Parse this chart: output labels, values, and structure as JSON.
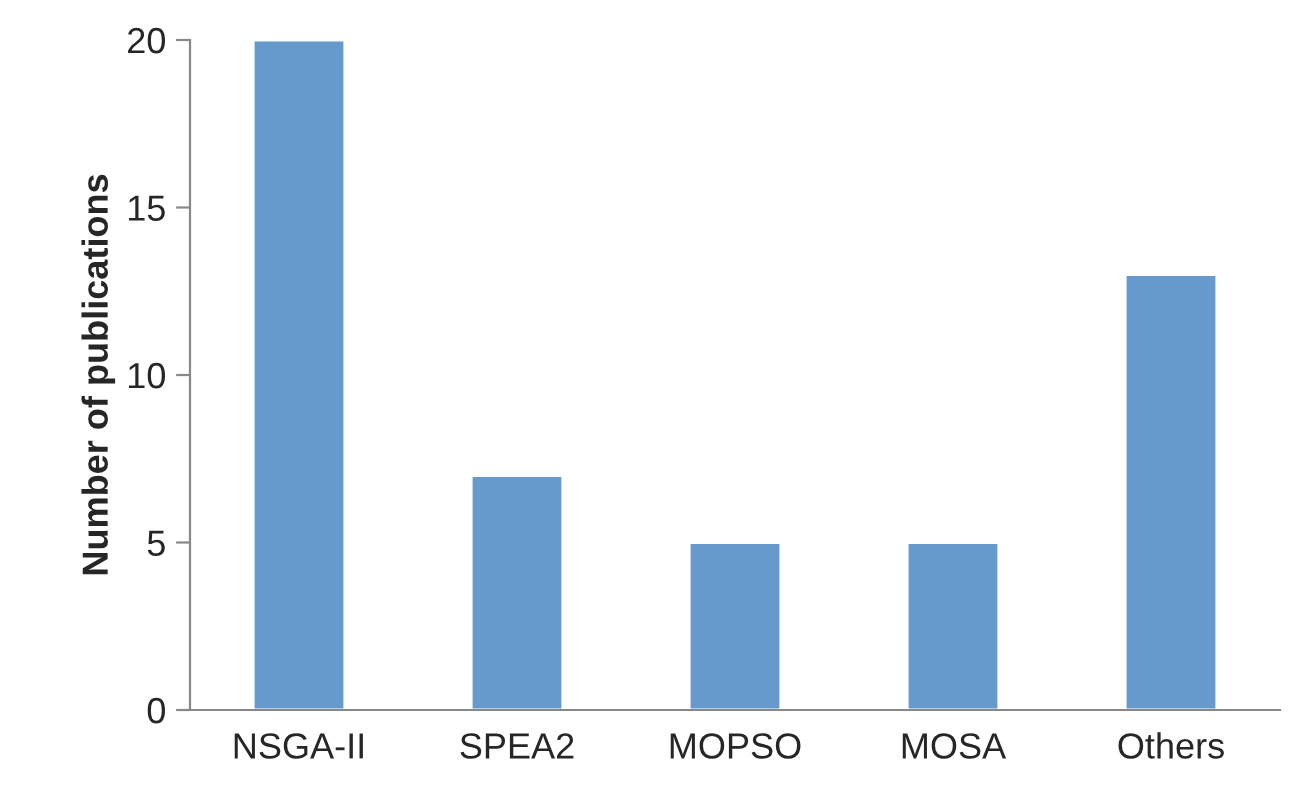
{
  "chart_data": {
    "type": "bar",
    "ylabel": "Number of publications",
    "categories": [
      "NSGA-II",
      "SPEA2",
      "MOPSO",
      "MOSA",
      "Others"
    ],
    "values": [
      20,
      7,
      5,
      5,
      13
    ],
    "color": "#6699cc",
    "ylim": [
      0,
      20
    ],
    "yticks": [
      0,
      5,
      10,
      15,
      20
    ],
    "grid": false,
    "legend": false
  }
}
